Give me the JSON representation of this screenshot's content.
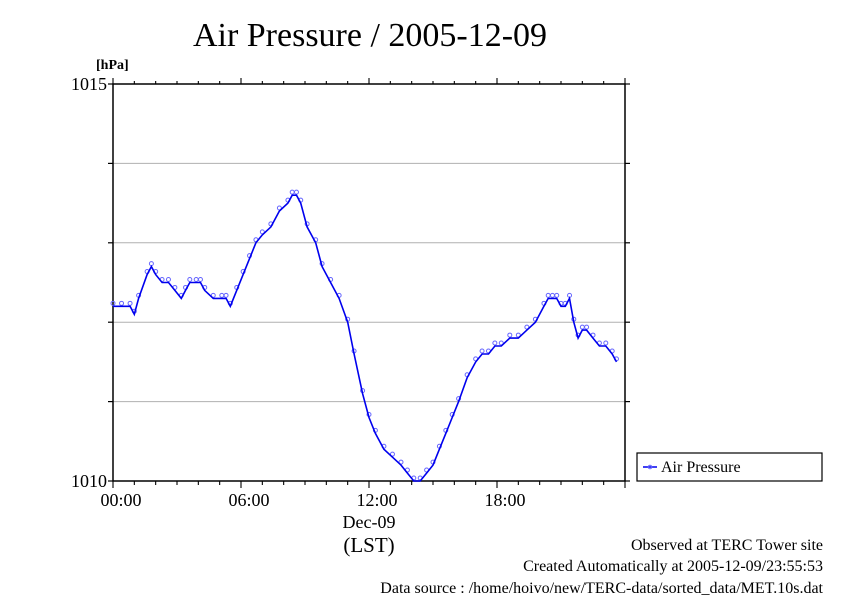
{
  "chart_data": {
    "type": "line",
    "title": "Air Pressure / 2005-12-09",
    "ylabel": "[hPa]",
    "xlabel": "(LST)",
    "date_label": "Dec-09",
    "ylim": [
      1010,
      1015
    ],
    "xlim": [
      0,
      24
    ],
    "y_ticks": [
      "1010",
      "1015"
    ],
    "x_ticks": [
      {
        "hour": 0,
        "label": "00:00"
      },
      {
        "hour": 6,
        "label": "06:00"
      },
      {
        "hour": 12,
        "label": "12:00"
      },
      {
        "hour": 18,
        "label": "18:00"
      }
    ],
    "grid": true,
    "legend_position": "right",
    "series": [
      {
        "name": "Air Pressure",
        "color": "#0000ee",
        "marker_color": "#6666ff",
        "x": [
          0.0,
          0.4,
          0.8,
          1.0,
          1.2,
          1.6,
          1.8,
          2.0,
          2.3,
          2.6,
          2.9,
          3.2,
          3.4,
          3.6,
          3.9,
          4.1,
          4.3,
          4.7,
          5.1,
          5.3,
          5.5,
          5.8,
          6.1,
          6.4,
          6.7,
          7.0,
          7.4,
          7.8,
          8.2,
          8.4,
          8.6,
          8.8,
          9.1,
          9.5,
          9.8,
          10.2,
          10.6,
          11.0,
          11.3,
          11.7,
          12.0,
          12.3,
          12.7,
          13.1,
          13.5,
          13.8,
          14.1,
          14.4,
          14.7,
          15.0,
          15.3,
          15.6,
          15.9,
          16.2,
          16.6,
          17.0,
          17.3,
          17.6,
          17.9,
          18.2,
          18.6,
          19.0,
          19.4,
          19.8,
          20.2,
          20.4,
          20.6,
          20.8,
          21.0,
          21.2,
          21.4,
          21.6,
          21.8,
          22.0,
          22.2,
          22.5,
          22.8,
          23.1,
          23.4,
          23.6
        ],
        "y": [
          1012.2,
          1012.2,
          1012.2,
          1012.1,
          1012.3,
          1012.6,
          1012.7,
          1012.6,
          1012.5,
          1012.5,
          1012.4,
          1012.3,
          1012.4,
          1012.5,
          1012.5,
          1012.5,
          1012.4,
          1012.3,
          1012.3,
          1012.3,
          1012.2,
          1012.4,
          1012.6,
          1012.8,
          1013.0,
          1013.1,
          1013.2,
          1013.4,
          1013.5,
          1013.6,
          1013.6,
          1013.5,
          1013.2,
          1013.0,
          1012.7,
          1012.5,
          1012.3,
          1012.0,
          1011.6,
          1011.1,
          1010.8,
          1010.6,
          1010.4,
          1010.3,
          1010.2,
          1010.1,
          1010.0,
          1010.0,
          1010.1,
          1010.2,
          1010.4,
          1010.6,
          1010.8,
          1011.0,
          1011.3,
          1011.5,
          1011.6,
          1011.6,
          1011.7,
          1011.7,
          1011.8,
          1011.8,
          1011.9,
          1012.0,
          1012.2,
          1012.3,
          1012.3,
          1012.3,
          1012.2,
          1012.2,
          1012.3,
          1012.0,
          1011.8,
          1011.9,
          1011.9,
          1011.8,
          1011.7,
          1011.7,
          1011.6,
          1011.5
        ]
      }
    ]
  },
  "footer": {
    "line1": "Observed at TERC Tower site",
    "line2": "Created Automatically at 2005-12-09/23:55:53",
    "line3": "Data source : /home/hoivo/new/TERC-data/sorted_data/MET.10s.dat"
  }
}
